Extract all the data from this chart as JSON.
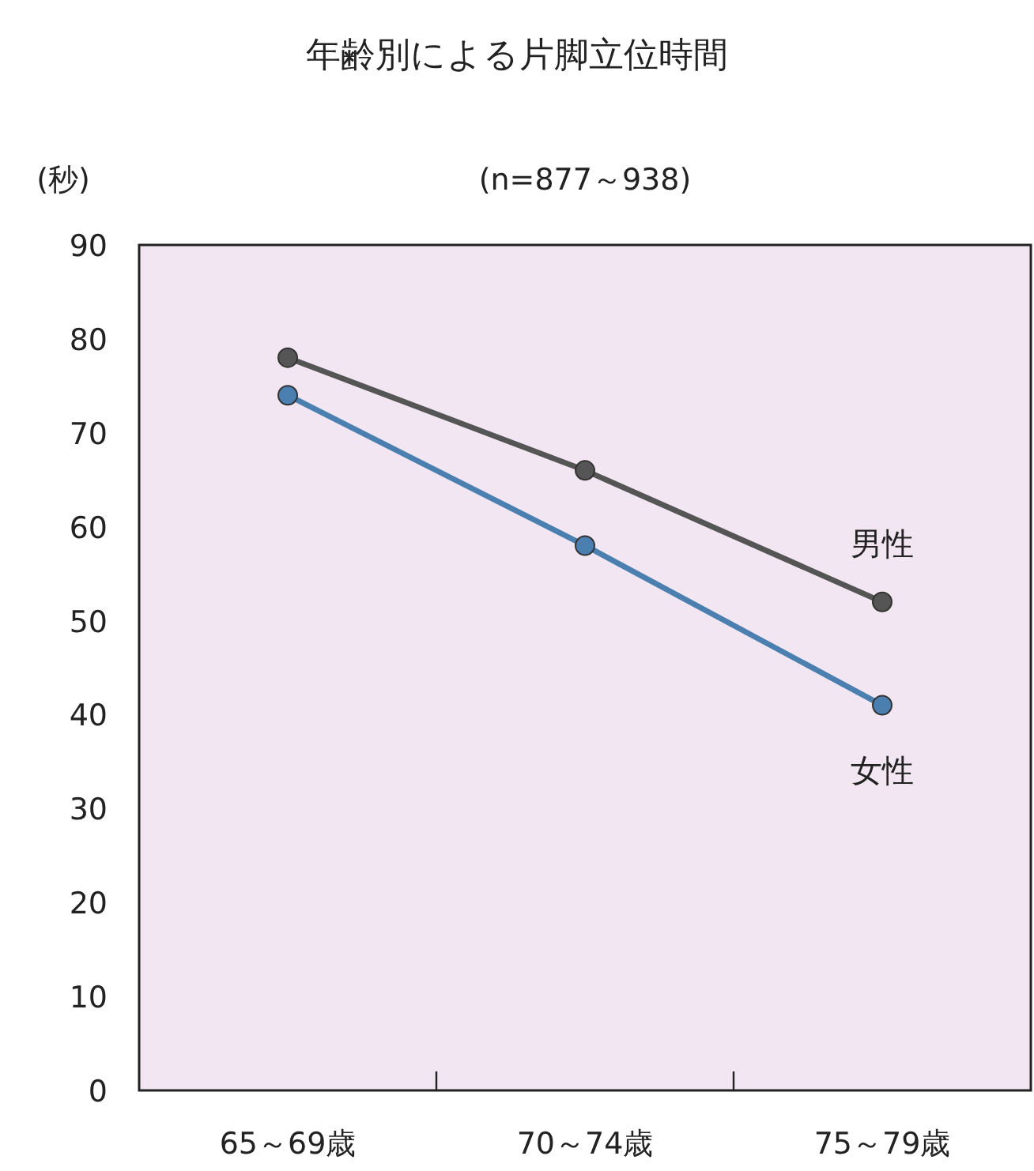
{
  "chart_data": {
    "type": "line",
    "title": "年齢別による片脚立位時間",
    "subtitle": "(n=877～938)",
    "ylabel": "(秒)",
    "categories": [
      "65～69歳",
      "70～74歳",
      "75～79歳"
    ],
    "series": [
      {
        "name": "男性",
        "color": "#555555",
        "values": [
          78,
          66,
          52
        ]
      },
      {
        "name": "女性",
        "color": "#4a7fb0",
        "values": [
          74,
          58,
          41
        ]
      }
    ],
    "ylim": [
      0,
      90
    ],
    "yticks": [
      0,
      10,
      20,
      30,
      40,
      50,
      60,
      70,
      80,
      90
    ],
    "marker": "circle",
    "line_style": "solid"
  }
}
